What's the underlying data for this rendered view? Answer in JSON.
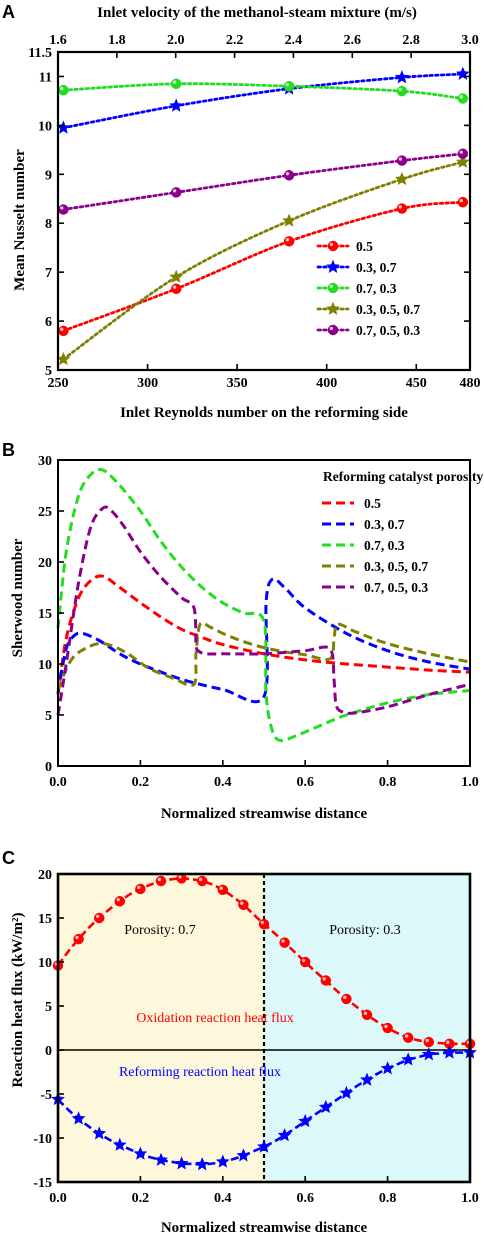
{
  "chart_data": [
    {
      "id": "A",
      "type": "line",
      "panel_label": "A",
      "title": "",
      "xlabel": "Inlet Reynolds number on the reforming side",
      "ylabel": "Mean Nusselt number",
      "x2label": "Inlet velocity of the methanol-steam mixture (m/s)",
      "xlim": [
        250,
        480
      ],
      "ylim": [
        5,
        11.5
      ],
      "x2lim": [
        1.6,
        3.0
      ],
      "xticks": [
        250,
        300,
        350,
        400,
        450,
        480
      ],
      "yticks": [
        5,
        6,
        7,
        8,
        9,
        10,
        11
      ],
      "x2ticks": [
        1.6,
        1.8,
        2.0,
        2.2,
        2.4,
        2.6,
        2.8,
        3.0
      ],
      "ytick_extra_label": "11.5",
      "x": [
        253,
        316,
        379,
        442,
        476
      ],
      "series": [
        {
          "name": "0.5",
          "color": "#ff0000",
          "marker": "circle",
          "values": [
            5.8,
            6.66,
            7.63,
            8.3,
            8.43
          ]
        },
        {
          "name": "0.3, 0.7",
          "color": "#0000ff",
          "marker": "star",
          "values": [
            9.95,
            10.4,
            10.75,
            10.98,
            11.05
          ]
        },
        {
          "name": "0.7, 0.3",
          "color": "#22dd22",
          "marker": "circle",
          "values": [
            10.72,
            10.85,
            10.8,
            10.7,
            10.55
          ]
        },
        {
          "name": "0.3, 0.5, 0.7",
          "color": "#808000",
          "marker": "star",
          "values": [
            5.22,
            6.9,
            8.05,
            8.9,
            9.25
          ]
        },
        {
          "name": "0.7, 0.5, 0.3",
          "color": "#8b008b",
          "marker": "circle",
          "values": [
            8.28,
            8.63,
            8.98,
            9.28,
            9.42
          ]
        }
      ],
      "legend_position": "bottom-right",
      "grid": false
    },
    {
      "id": "B",
      "type": "line",
      "panel_label": "B",
      "title": "",
      "xlabel": "Normalized streamwise distance",
      "ylabel": "Sherwood number",
      "xlim": [
        0,
        1
      ],
      "ylim": [
        0,
        30
      ],
      "xticks": [
        0.0,
        0.2,
        0.4,
        0.6,
        0.8,
        1.0
      ],
      "yticks": [
        0,
        5,
        10,
        15,
        20,
        25,
        30
      ],
      "legend_title": "Reforming catalyst porosity",
      "series": [
        {
          "name": "0.5",
          "color": "#ff0000",
          "x": [
            0,
            0.02,
            0.05,
            0.08,
            0.11,
            0.15,
            0.2,
            0.25,
            0.3,
            0.35,
            0.4,
            0.5,
            0.6,
            0.7,
            0.8,
            0.9,
            1.0
          ],
          "values": [
            7,
            12.5,
            16.5,
            18.2,
            18.6,
            17.5,
            16.0,
            14.6,
            13.4,
            12.6,
            11.9,
            11.0,
            10.4,
            10.0,
            9.7,
            9.4,
            9.2
          ]
        },
        {
          "name": "0.3, 0.7",
          "color": "#0000ff",
          "x": [
            0,
            0.02,
            0.04,
            0.06,
            0.1,
            0.15,
            0.2,
            0.3,
            0.4,
            0.5,
            0.505,
            0.52,
            0.55,
            0.6,
            0.7,
            0.8,
            0.9,
            1.0
          ],
          "values": [
            7.2,
            11.5,
            12.8,
            13.0,
            12.3,
            11.0,
            10.0,
            8.5,
            7.5,
            6.8,
            16.0,
            18.3,
            17.5,
            15.5,
            13.0,
            11.3,
            10.2,
            9.5
          ]
        },
        {
          "name": "0.7, 0.3",
          "color": "#22dd22",
          "x": [
            0,
            0.02,
            0.05,
            0.08,
            0.11,
            0.15,
            0.2,
            0.25,
            0.3,
            0.35,
            0.4,
            0.45,
            0.5,
            0.505,
            0.52,
            0.54,
            0.58,
            0.65,
            0.7,
            0.8,
            0.9,
            1.0
          ],
          "values": [
            13.5,
            21.0,
            26.5,
            28.6,
            29.0,
            27.5,
            25.0,
            22.0,
            19.5,
            17.5,
            16.0,
            15.0,
            14.2,
            7.0,
            3.5,
            2.5,
            3.0,
            4.2,
            5.0,
            6.2,
            7.0,
            7.4
          ]
        },
        {
          "name": "0.3, 0.5, 0.7",
          "color": "#808000",
          "x": [
            0,
            0.02,
            0.04,
            0.07,
            0.1,
            0.13,
            0.17,
            0.22,
            0.28,
            0.33,
            0.335,
            0.345,
            0.37,
            0.4,
            0.45,
            0.5,
            0.55,
            0.6,
            0.66,
            0.67,
            0.675,
            0.69,
            0.72,
            0.8,
            0.9,
            1.0
          ],
          "values": [
            7.5,
            9.5,
            10.8,
            11.6,
            12.0,
            11.8,
            11.0,
            9.6,
            8.6,
            8.0,
            11.0,
            13.9,
            13.6,
            13.0,
            12.2,
            11.6,
            11.2,
            10.9,
            10.5,
            12.5,
            13.8,
            13.8,
            13.2,
            12.0,
            11.0,
            10.2
          ]
        },
        {
          "name": "0.7, 0.5, 0.3",
          "color": "#8b008b",
          "x": [
            0,
            0.02,
            0.05,
            0.08,
            0.11,
            0.13,
            0.16,
            0.2,
            0.25,
            0.3,
            0.33,
            0.335,
            0.34,
            0.36,
            0.4,
            0.5,
            0.6,
            0.66,
            0.67,
            0.675,
            0.69,
            0.72,
            0.8,
            0.9,
            1.0
          ],
          "values": [
            5.0,
            10.0,
            18.0,
            23.5,
            25.3,
            25.0,
            23.5,
            21.0,
            18.5,
            16.5,
            15.5,
            12.0,
            11.3,
            11.0,
            11.0,
            11.0,
            11.3,
            11.5,
            8.5,
            6.0,
            5.3,
            5.2,
            5.8,
            7.0,
            8.0
          ]
        }
      ],
      "legend_position": "top-right",
      "grid": false
    },
    {
      "id": "C",
      "type": "line",
      "panel_label": "C",
      "title": "",
      "xlabel": "Normalized streamwise distance",
      "ylabel": "Reaction heat flux (kW/m²)",
      "xlim": [
        0,
        1
      ],
      "ylim": [
        -15,
        20
      ],
      "xticks": [
        0.0,
        0.2,
        0.4,
        0.6,
        0.8,
        1.0
      ],
      "yticks": [
        -15,
        -10,
        -5,
        0,
        5,
        10,
        15,
        20
      ],
      "regions": [
        {
          "label": "Porosity: 0.7",
          "x0": 0,
          "x1": 0.5,
          "color": "#fdf8dc"
        },
        {
          "label": "Porosity: 0.3",
          "x0": 0.5,
          "x1": 1.0,
          "color": "#ddf8f8"
        }
      ],
      "series": [
        {
          "name": "Oxidation reaction heat flux",
          "color": "#ff0000",
          "marker": "circle",
          "x": [
            0,
            0.025,
            0.05,
            0.075,
            0.1,
            0.125,
            0.15,
            0.175,
            0.2,
            0.225,
            0.25,
            0.275,
            0.3,
            0.325,
            0.35,
            0.375,
            0.4,
            0.425,
            0.45,
            0.475,
            0.5,
            0.525,
            0.55,
            0.575,
            0.6,
            0.625,
            0.65,
            0.675,
            0.7,
            0.725,
            0.75,
            0.775,
            0.8,
            0.825,
            0.85,
            0.875,
            0.9,
            0.925,
            0.95,
            0.975,
            1.0
          ],
          "values": [
            9.6,
            11.2,
            12.6,
            13.9,
            15.0,
            16.0,
            16.9,
            17.7,
            18.3,
            18.8,
            19.2,
            19.4,
            19.5,
            19.4,
            19.2,
            18.8,
            18.2,
            17.4,
            16.5,
            15.4,
            14.3,
            13.3,
            12.2,
            11.1,
            10.0,
            8.9,
            7.9,
            6.8,
            5.8,
            4.9,
            4.0,
            3.2,
            2.5,
            1.9,
            1.4,
            1.1,
            0.9,
            0.8,
            0.7,
            0.7,
            0.7
          ]
        },
        {
          "name": "Reforming reaction heat flux",
          "color": "#0000ff",
          "marker": "star",
          "x": [
            0,
            0.025,
            0.05,
            0.075,
            0.1,
            0.125,
            0.15,
            0.175,
            0.2,
            0.225,
            0.25,
            0.275,
            0.3,
            0.325,
            0.35,
            0.375,
            0.4,
            0.425,
            0.45,
            0.475,
            0.5,
            0.525,
            0.55,
            0.575,
            0.6,
            0.625,
            0.65,
            0.675,
            0.7,
            0.725,
            0.75,
            0.775,
            0.8,
            0.825,
            0.85,
            0.875,
            0.9,
            0.925,
            0.95,
            0.975,
            1.0
          ],
          "values": [
            -5.6,
            -6.8,
            -7.8,
            -8.7,
            -9.5,
            -10.2,
            -10.8,
            -11.3,
            -11.8,
            -12.2,
            -12.5,
            -12.7,
            -12.9,
            -12.95,
            -13.0,
            -12.9,
            -12.7,
            -12.4,
            -12.0,
            -11.5,
            -11.0,
            -10.4,
            -9.7,
            -8.9,
            -8.1,
            -7.3,
            -6.5,
            -5.7,
            -4.9,
            -4.1,
            -3.4,
            -2.7,
            -2.1,
            -1.6,
            -1.1,
            -0.8,
            -0.5,
            -0.4,
            -0.3,
            -0.3,
            -0.3
          ]
        }
      ],
      "legend_position": "inline",
      "grid": false
    }
  ]
}
